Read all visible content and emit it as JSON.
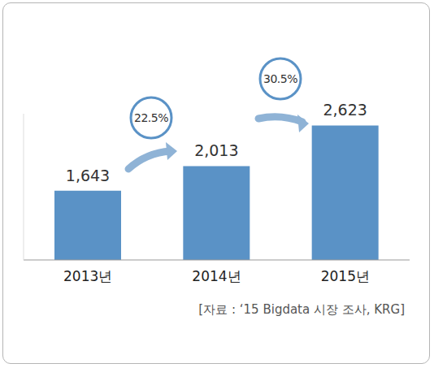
{
  "chart_data": {
    "type": "bar",
    "categories": [
      "2013년",
      "2014년",
      "2015년"
    ],
    "values": [
      1643,
      2013,
      2623
    ],
    "value_labels": [
      "1,643",
      "2,013",
      "2,623"
    ],
    "data_labels": true,
    "color": "#5a92c6",
    "ylim": [
      600,
      2800
    ],
    "tick_labels": "x",
    "annotations": [
      "22.5%",
      "30.5%"
    ],
    "source": "[자료 : ‘15 Bigdata 시장 조사, KRG]"
  }
}
